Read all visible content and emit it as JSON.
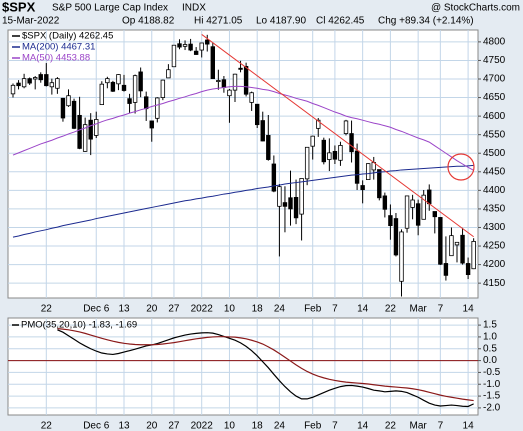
{
  "header": {
    "symbol": "$SPX",
    "name": "S&P 500 Large Cap Index",
    "exchange": "INDX",
    "source": "@ StockCharts.com",
    "date": "15-Mar-2022",
    "ohlc_labels": [
      "Op 4188.82",
      "Hi 4271.05",
      "Lo 4187.90",
      "Cl 4262.45"
    ],
    "change": "Chg +89.34 (+2.14%)"
  },
  "chart_data": [
    {
      "type": "candlestick",
      "categories": [
        null,
        null,
        null,
        null,
        null,
        null,
        "22",
        null,
        null,
        null,
        null,
        null,
        null,
        null,
        null,
        "Dec 6",
        null,
        null,
        null,
        null,
        "13",
        null,
        null,
        null,
        null,
        "20",
        null,
        null,
        null,
        "27",
        null,
        null,
        null,
        null,
        "2022",
        null,
        null,
        null,
        null,
        "10",
        null,
        null,
        null,
        null,
        "18",
        null,
        null,
        null,
        "24",
        null,
        null,
        null,
        null,
        null,
        "Feb",
        null,
        null,
        null,
        "7",
        null,
        null,
        null,
        null,
        "14",
        null,
        null,
        null,
        null,
        "22",
        null,
        null,
        null,
        null,
        "Mar",
        null,
        null,
        null,
        "7",
        null,
        null,
        null,
        null,
        "14",
        null
      ],
      "ylim": [
        4110,
        4832
      ],
      "yticks": [
        4150,
        4200,
        4250,
        4300,
        4350,
        4400,
        4450,
        4500,
        4550,
        4600,
        4650,
        4700,
        4750,
        4800
      ],
      "grid": true,
      "series": [
        {
          "name": "$SPX (Daily) 4262.45",
          "color": "#000000",
          "open": [
            4660,
            4689,
            4679,
            4701,
            4700,
            4712,
            4712,
            4679,
            4675,
            4648,
            4628,
            4640,
            4602,
            4505,
            4589,
            4548,
            4631,
            4690,
            4691,
            4687,
            4683,
            4647,
            4637,
            4719,
            4652,
            4587,
            4594,
            4650,
            4703,
            4733,
            4795,
            4788,
            4794,
            4775,
            4778,
            4805,
            4787,
            4693,
            4698,
            4655,
            4670,
            4729,
            4734,
            4637,
            4632,
            4588,
            4548,
            4471,
            4357,
            4367,
            4380,
            4381,
            4336,
            4431,
            4519,
            4567,
            4535,
            4483,
            4505,
            4481,
            4553,
            4553,
            4506,
            4413,
            4429,
            4455,
            4456,
            4385,
            4332,
            4324,
            4155,
            4298,
            4354,
            4364,
            4322,
            4401,
            4343,
            4327,
            4203,
            4224,
            4253,
            4279,
            4203,
            4188.82
          ],
          "high": [
            4688,
            4697,
            4714,
            4704,
            4708,
            4718,
            4743,
            4701,
            4705,
            4649,
            4672,
            4647,
            4652,
            4596,
            4608,
            4612,
            4694,
            4706,
            4695,
            4713,
            4711,
            4660,
            4712,
            4731,
            4666,
            4588,
            4651,
            4698,
            4740,
            4791,
            4807,
            4804,
            4808,
            4786,
            4797,
            4819,
            4797,
            4725,
            4708,
            4673,
            4714,
            4749,
            4744,
            4666,
            4632,
            4612,
            4603,
            4494,
            4417,
            4411,
            4453,
            4429,
            4432,
            4516,
            4547,
            4595,
            4542,
            4540,
            4521,
            4531,
            4590,
            4588,
            4526,
            4427,
            4473,
            4490,
            4456,
            4394,
            4362,
            4339,
            4295,
            4385,
            4388,
            4375,
            4401,
            4416,
            4343,
            4327,
            4276,
            4300,
            4261,
            4299,
            4219,
            4271.05
          ],
          "low": [
            4650,
            4672,
            4675,
            4684,
            4672,
            4690,
            4680,
            4658,
            4660,
            4585,
            4625,
            4565,
            4511,
            4504,
            4495,
            4541,
            4631,
            4675,
            4665,
            4670,
            4666,
            4608,
            4607,
            4651,
            4587,
            4531,
            4583,
            4643,
            4703,
            4733,
            4780,
            4778,
            4775,
            4765,
            4758,
            4774,
            4700,
            4671,
            4663,
            4582,
            4638,
            4718,
            4653,
            4614,
            4568,
            4532,
            4480,
            4395,
            4222,
            4287,
            4305,
            4309,
            4265,
            4414,
            4483,
            4544,
            4470,
            4452,
            4471,
            4466,
            4548,
            4475,
            4401,
            4365,
            4429,
            4429,
            4373,
            4327,
            4267,
            4222,
            4114,
            4286,
            4322,
            4279,
            4322,
            4345,
            4284,
            4199,
            4157,
            4224,
            4206,
            4200,
            4161,
            4187.9
          ],
          "close": [
            4683,
            4682,
            4701,
            4689,
            4704,
            4698,
            4682,
            4690,
            4701,
            4595,
            4655,
            4567,
            4513,
            4577,
            4538,
            4591,
            4686,
            4701,
            4667,
            4712,
            4669,
            4634,
            4709,
            4668,
            4620,
            4568,
            4649,
            4697,
            4725,
            4791,
            4786,
            4793,
            4778,
            4766,
            4797,
            4794,
            4701,
            4696,
            4677,
            4670,
            4713,
            4726,
            4659,
            4663,
            4577,
            4533,
            4483,
            4398,
            4410,
            4357,
            4350,
            4326,
            4432,
            4516,
            4546,
            4589,
            4477,
            4501,
            4484,
            4521,
            4587,
            4504,
            4419,
            4402,
            4472,
            4475,
            4380,
            4349,
            4305,
            4226,
            4288,
            4385,
            4374,
            4306,
            4387,
            4364,
            4329,
            4201,
            4171,
            4278,
            4260,
            4204,
            4173,
            4262.45
          ]
        },
        {
          "name": "MA(200) 4467.31",
          "color": "#1b2a8f",
          "values": [
            4274,
            4277,
            4281,
            4284,
            4288,
            4291,
            4294,
            4298,
            4301,
            4305,
            4308,
            4311,
            4314,
            4317,
            4320,
            4324,
            4327,
            4330,
            4333,
            4336,
            4339,
            4342,
            4345,
            4348,
            4351,
            4354,
            4357,
            4360,
            4363,
            4366,
            4369,
            4372,
            4374,
            4377,
            4379,
            4382,
            4384,
            4387,
            4390,
            4392,
            4395,
            4397,
            4400,
            4402,
            4405,
            4407,
            4409,
            4412,
            4414,
            4417,
            4419,
            4421,
            4423,
            4425,
            4427,
            4429,
            4431,
            4433,
            4435,
            4437,
            4439,
            4441,
            4442,
            4444,
            4445,
            4447,
            4449,
            4450,
            4452,
            4453,
            4455,
            4456,
            4457,
            4458,
            4459,
            4460,
            4461,
            4462,
            4463,
            4464,
            4465,
            4465,
            4466,
            4467.31
          ]
        },
        {
          "name": "MA(50) 4453.88",
          "color": "#9b45c8",
          "values": [
            4495,
            4501,
            4507,
            4513,
            4519,
            4525,
            4530,
            4535,
            4541,
            4546,
            4552,
            4557,
            4563,
            4568,
            4574,
            4579,
            4585,
            4590,
            4594,
            4599,
            4603,
            4608,
            4612,
            4617,
            4621,
            4626,
            4630,
            4634,
            4639,
            4643,
            4648,
            4652,
            4657,
            4661,
            4666,
            4670,
            4673,
            4675,
            4677,
            4679,
            4680,
            4680,
            4679,
            4677,
            4675,
            4672,
            4670,
            4666,
            4661,
            4657,
            4653,
            4648,
            4644,
            4640,
            4634,
            4629,
            4623,
            4617,
            4611,
            4606,
            4600,
            4596,
            4593,
            4589,
            4585,
            4581,
            4578,
            4574,
            4570,
            4564,
            4559,
            4553,
            4547,
            4541,
            4536,
            4530,
            4520,
            4510,
            4500,
            4490,
            4480,
            4471,
            4462,
            4453.88
          ]
        }
      ],
      "trendline": {
        "color": "#e53935",
        "from": {
          "index": 34,
          "value": 4820
        },
        "to": {
          "index": 83,
          "value": 4275
        }
      }
    },
    {
      "type": "line",
      "title": "PMO(35,20,10) -1.83, -1.69",
      "categories": [
        null,
        null,
        null,
        null,
        null,
        null,
        "22",
        null,
        null,
        null,
        null,
        null,
        null,
        null,
        null,
        "Dec 6",
        null,
        null,
        null,
        null,
        "13",
        null,
        null,
        null,
        null,
        "20",
        null,
        null,
        null,
        "27",
        null,
        null,
        null,
        null,
        "2022",
        null,
        null,
        null,
        null,
        "10",
        null,
        null,
        null,
        null,
        "18",
        null,
        null,
        null,
        "24",
        null,
        null,
        null,
        null,
        null,
        "Feb",
        null,
        null,
        null,
        "7",
        null,
        null,
        null,
        null,
        "14",
        null,
        null,
        null,
        null,
        "22",
        null,
        null,
        null,
        null,
        "Mar",
        null,
        null,
        null,
        "7",
        null,
        null,
        null,
        null,
        "14",
        null
      ],
      "ylim": [
        -2.3,
        1.8
      ],
      "yticks": [
        1.5,
        {
          "value": 1,
          "label": "1.0"
        },
        0.5,
        {
          "value": 0,
          "label": "0.0"
        },
        -0.5,
        {
          "value": -1,
          "label": "-1.0"
        },
        -1.5,
        {
          "value": -2,
          "label": "-2.0"
        }
      ],
      "grid": true,
      "hline": {
        "value": 0,
        "color": "#8b1010"
      },
      "series": [
        {
          "color": "#000000",
          "values": [
            null,
            null,
            null,
            null,
            null,
            null,
            null,
            null,
            1.3,
            1.2,
            1.05,
            0.9,
            0.75,
            0.62,
            0.5,
            0.4,
            0.32,
            0.28,
            0.26,
            0.3,
            0.36,
            0.42,
            0.48,
            0.55,
            0.62,
            0.66,
            0.72,
            0.8,
            0.88,
            0.96,
            1.02,
            1.08,
            1.12,
            1.15,
            1.17,
            1.18,
            1.16,
            1.1,
            1.02,
            0.94,
            0.86,
            0.75,
            0.6,
            0.42,
            0.2,
            -0.05,
            -0.3,
            -0.58,
            -0.85,
            -1.1,
            -1.32,
            -1.5,
            -1.62,
            -1.62,
            -1.55,
            -1.45,
            -1.35,
            -1.25,
            -1.17,
            -1.1,
            -1.06,
            -1.05,
            -1.08,
            -1.12,
            -1.18,
            -1.25,
            -1.28,
            -1.32,
            -1.3,
            -1.28,
            -1.3,
            -1.35,
            -1.45,
            -1.55,
            -1.68,
            -1.8,
            -1.88,
            -1.92,
            -1.9,
            -1.88,
            -1.9,
            -1.93,
            -1.94,
            -1.83
          ]
        },
        {
          "color": "#8b1a1a",
          "values": [
            null,
            null,
            null,
            null,
            null,
            null,
            null,
            null,
            1.35,
            1.33,
            1.3,
            1.26,
            1.21,
            1.15,
            1.08,
            1.01,
            0.94,
            0.88,
            0.82,
            0.77,
            0.73,
            0.7,
            0.68,
            0.67,
            0.67,
            0.67,
            0.68,
            0.7,
            0.73,
            0.76,
            0.8,
            0.84,
            0.88,
            0.92,
            0.95,
            0.98,
            1.0,
            1.01,
            1.01,
            1.0,
            0.99,
            0.96,
            0.92,
            0.86,
            0.79,
            0.7,
            0.58,
            0.45,
            0.3,
            0.14,
            -0.02,
            -0.18,
            -0.33,
            -0.46,
            -0.57,
            -0.66,
            -0.73,
            -0.79,
            -0.84,
            -0.88,
            -0.91,
            -0.93,
            -0.95,
            -0.97,
            -0.99,
            -1.02,
            -1.05,
            -1.08,
            -1.1,
            -1.12,
            -1.14,
            -1.16,
            -1.19,
            -1.23,
            -1.28,
            -1.34,
            -1.4,
            -1.46,
            -1.51,
            -1.55,
            -1.59,
            -1.63,
            -1.66,
            -1.69
          ]
        }
      ]
    }
  ]
}
